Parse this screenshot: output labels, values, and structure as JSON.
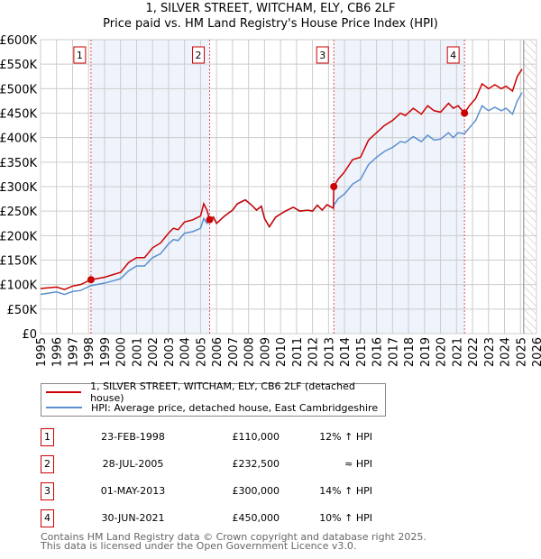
{
  "title": "1, SILVER STREET, WITCHAM, ELY, CB6 2LF",
  "subtitle": "Price paid vs. HM Land Registry's House Price Index (HPI)",
  "legend": {
    "property": "1, SILVER STREET, WITCHAM, ELY, CB6 2LF (detached house)",
    "hpi": "HPI: Average price, detached house, East Cambridgeshire"
  },
  "colors": {
    "property": "#cc0000",
    "hpi": "#5b8fd0",
    "band": "#eef3fc"
  },
  "sales": [
    {
      "num": "1",
      "date": "23-FEB-1998",
      "price": "£110,000",
      "hpi": "12% ↑ HPI",
      "x": 1998.15,
      "y": 110
    },
    {
      "num": "2",
      "date": "28-JUL-2005",
      "price": "£232,500",
      "hpi": "≈ HPI",
      "x": 2005.57,
      "y": 232.5
    },
    {
      "num": "3",
      "date": "01-MAY-2013",
      "price": "£300,000",
      "hpi": "14% ↑ HPI",
      "x": 2013.33,
      "y": 300
    },
    {
      "num": "4",
      "date": "30-JUN-2021",
      "price": "£450,000",
      "hpi": "10% ↑ HPI",
      "x": 2021.5,
      "y": 450
    }
  ],
  "footer": [
    "Contains HM Land Registry data © Crown copyright and database right 2025.",
    "This data is licensed under the Open Government Licence v3.0."
  ],
  "chart_data": {
    "type": "line",
    "xlim": [
      1995,
      2026
    ],
    "ylim": [
      0,
      600
    ],
    "yticks": [
      0,
      50,
      100,
      150,
      200,
      250,
      300,
      350,
      400,
      450,
      500,
      550,
      600
    ],
    "ytick_labels": [
      "£0",
      "£50K",
      "£100K",
      "£150K",
      "£200K",
      "£250K",
      "£300K",
      "£350K",
      "£400K",
      "£450K",
      "£500K",
      "£550K",
      "£600K"
    ],
    "xticks": [
      "1995",
      "1996",
      "1997",
      "1998",
      "1999",
      "2000",
      "2001",
      "2002",
      "2003",
      "2004",
      "2005",
      "2006",
      "2007",
      "2008",
      "2009",
      "2010",
      "2011",
      "2012",
      "2013",
      "2014",
      "2015",
      "2016",
      "2017",
      "2018",
      "2019",
      "2020",
      "2021",
      "2022",
      "2023",
      "2024",
      "2025",
      "2026"
    ],
    "forecast_start": 2025.2,
    "series": [
      {
        "name": "property",
        "x": [
          1995,
          1996,
          1996.5,
          1997,
          1997.5,
          1998.15,
          1999,
          2000,
          2000.5,
          2001,
          2001.5,
          2002,
          2002.5,
          2003,
          2003.3,
          2003.6,
          2004,
          2004.5,
          2005,
          2005.2,
          2005.4,
          2005.57,
          2005.8,
          2006,
          2006.5,
          2007,
          2007.3,
          2007.8,
          2008.2,
          2008.5,
          2008.8,
          2009,
          2009.3,
          2009.7,
          2010.3,
          2010.8,
          2011.2,
          2011.7,
          2012,
          2012.3,
          2012.6,
          2012.9,
          2013.3,
          2013.33,
          2013.6,
          2014,
          2014.5,
          2015,
          2015.5,
          2016,
          2016.5,
          2017,
          2017.5,
          2017.8,
          2018.3,
          2018.8,
          2019.2,
          2019.6,
          2020,
          2020.5,
          2020.8,
          2021.1,
          2021.5,
          2021.8,
          2022.2,
          2022.6,
          2023,
          2023.4,
          2023.8,
          2024.1,
          2024.5,
          2024.8,
          2025.1
        ],
        "values": [
          92,
          95,
          90,
          97,
          100,
          110,
          115,
          125,
          145,
          155,
          155,
          175,
          185,
          205,
          215,
          212,
          228,
          232,
          240,
          265,
          252,
          232.5,
          238,
          225,
          240,
          252,
          265,
          273,
          262,
          252,
          260,
          235,
          218,
          238,
          250,
          258,
          250,
          252,
          250,
          262,
          252,
          263,
          256,
          300,
          315,
          330,
          355,
          360,
          395,
          410,
          425,
          435,
          450,
          445,
          460,
          448,
          465,
          455,
          452,
          470,
          460,
          465,
          450,
          465,
          480,
          510,
          500,
          508,
          500,
          505,
          495,
          525,
          540
        ]
      },
      {
        "name": "hpi",
        "x": [
          1995,
          1996,
          1996.5,
          1997,
          1997.5,
          1998.15,
          1999,
          2000,
          2000.5,
          2001,
          2001.5,
          2002,
          2002.5,
          2003,
          2003.3,
          2003.6,
          2004,
          2004.5,
          2005,
          2005.2,
          2005.4,
          2005.57,
          2005.8,
          2006,
          2006.5,
          2007,
          2007.3,
          2007.8,
          2008.2,
          2008.5,
          2008.8,
          2009,
          2009.3,
          2009.7,
          2010.3,
          2010.8,
          2011.2,
          2011.7,
          2012,
          2012.3,
          2012.6,
          2012.9,
          2013.3,
          2013.33,
          2013.6,
          2014,
          2014.5,
          2015,
          2015.5,
          2016,
          2016.5,
          2017,
          2017.5,
          2017.8,
          2018.3,
          2018.8,
          2019.2,
          2019.6,
          2020,
          2020.5,
          2020.8,
          2021.1,
          2021.5,
          2021.8,
          2022.2,
          2022.6,
          2023,
          2023.4,
          2023.8,
          2024.1,
          2024.5,
          2024.8,
          2025.1
        ],
        "values": [
          80,
          85,
          80,
          86,
          88,
          98,
          103,
          112,
          128,
          138,
          138,
          155,
          163,
          183,
          192,
          190,
          205,
          208,
          215,
          235,
          225,
          232,
          238,
          225,
          240,
          252,
          265,
          273,
          262,
          252,
          260,
          235,
          218,
          238,
          250,
          258,
          250,
          252,
          250,
          262,
          252,
          263,
          256,
          262,
          275,
          285,
          305,
          315,
          345,
          360,
          372,
          380,
          392,
          390,
          402,
          392,
          405,
          395,
          397,
          410,
          400,
          410,
          408,
          420,
          435,
          465,
          455,
          462,
          455,
          460,
          448,
          475,
          492
        ]
      }
    ]
  }
}
